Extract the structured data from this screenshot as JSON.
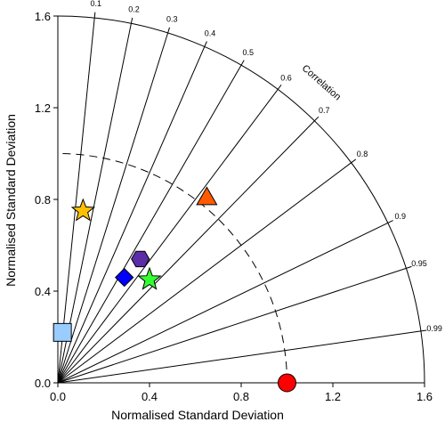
{
  "chart_data": {
    "type": "scatter",
    "subtype": "taylor-diagram",
    "xlabel": "Normalised Standard Deviation",
    "ylabel": "Normalised Standard Deviation",
    "xlim": [
      0,
      1.6
    ],
    "ylim": [
      0,
      1.6
    ],
    "x_ticks": [
      "0.0",
      "0.4",
      "0.8",
      "1.2",
      "1.6"
    ],
    "y_ticks": [
      "0.0",
      "0.4",
      "0.8",
      "1.2",
      "1.6"
    ],
    "correlation_title": "Correlation",
    "correlation_ticks": [
      "0.1",
      "0.2",
      "0.3",
      "0.4",
      "0.5",
      "0.6",
      "0.7",
      "0.8",
      "0.9",
      "0.95",
      "0.99"
    ],
    "reference_arc_std": 1.0,
    "points": [
      {
        "marker": "circle",
        "color": "#ff0000",
        "x": 1.0,
        "y": 0.0
      },
      {
        "marker": "square",
        "color": "#99ccff",
        "x": 0.02,
        "y": 0.22
      },
      {
        "marker": "star",
        "color": "#ffc000",
        "x": 0.11,
        "y": 0.75
      },
      {
        "marker": "triangle",
        "color": "#ff5a00",
        "x": 0.65,
        "y": 0.81
      },
      {
        "marker": "hexagon",
        "color": "#5b2da6",
        "x": 0.36,
        "y": 0.54
      },
      {
        "marker": "diamond",
        "color": "#0000ff",
        "x": 0.29,
        "y": 0.46
      },
      {
        "marker": "star",
        "color": "#33ff33",
        "x": 0.4,
        "y": 0.45
      }
    ]
  }
}
